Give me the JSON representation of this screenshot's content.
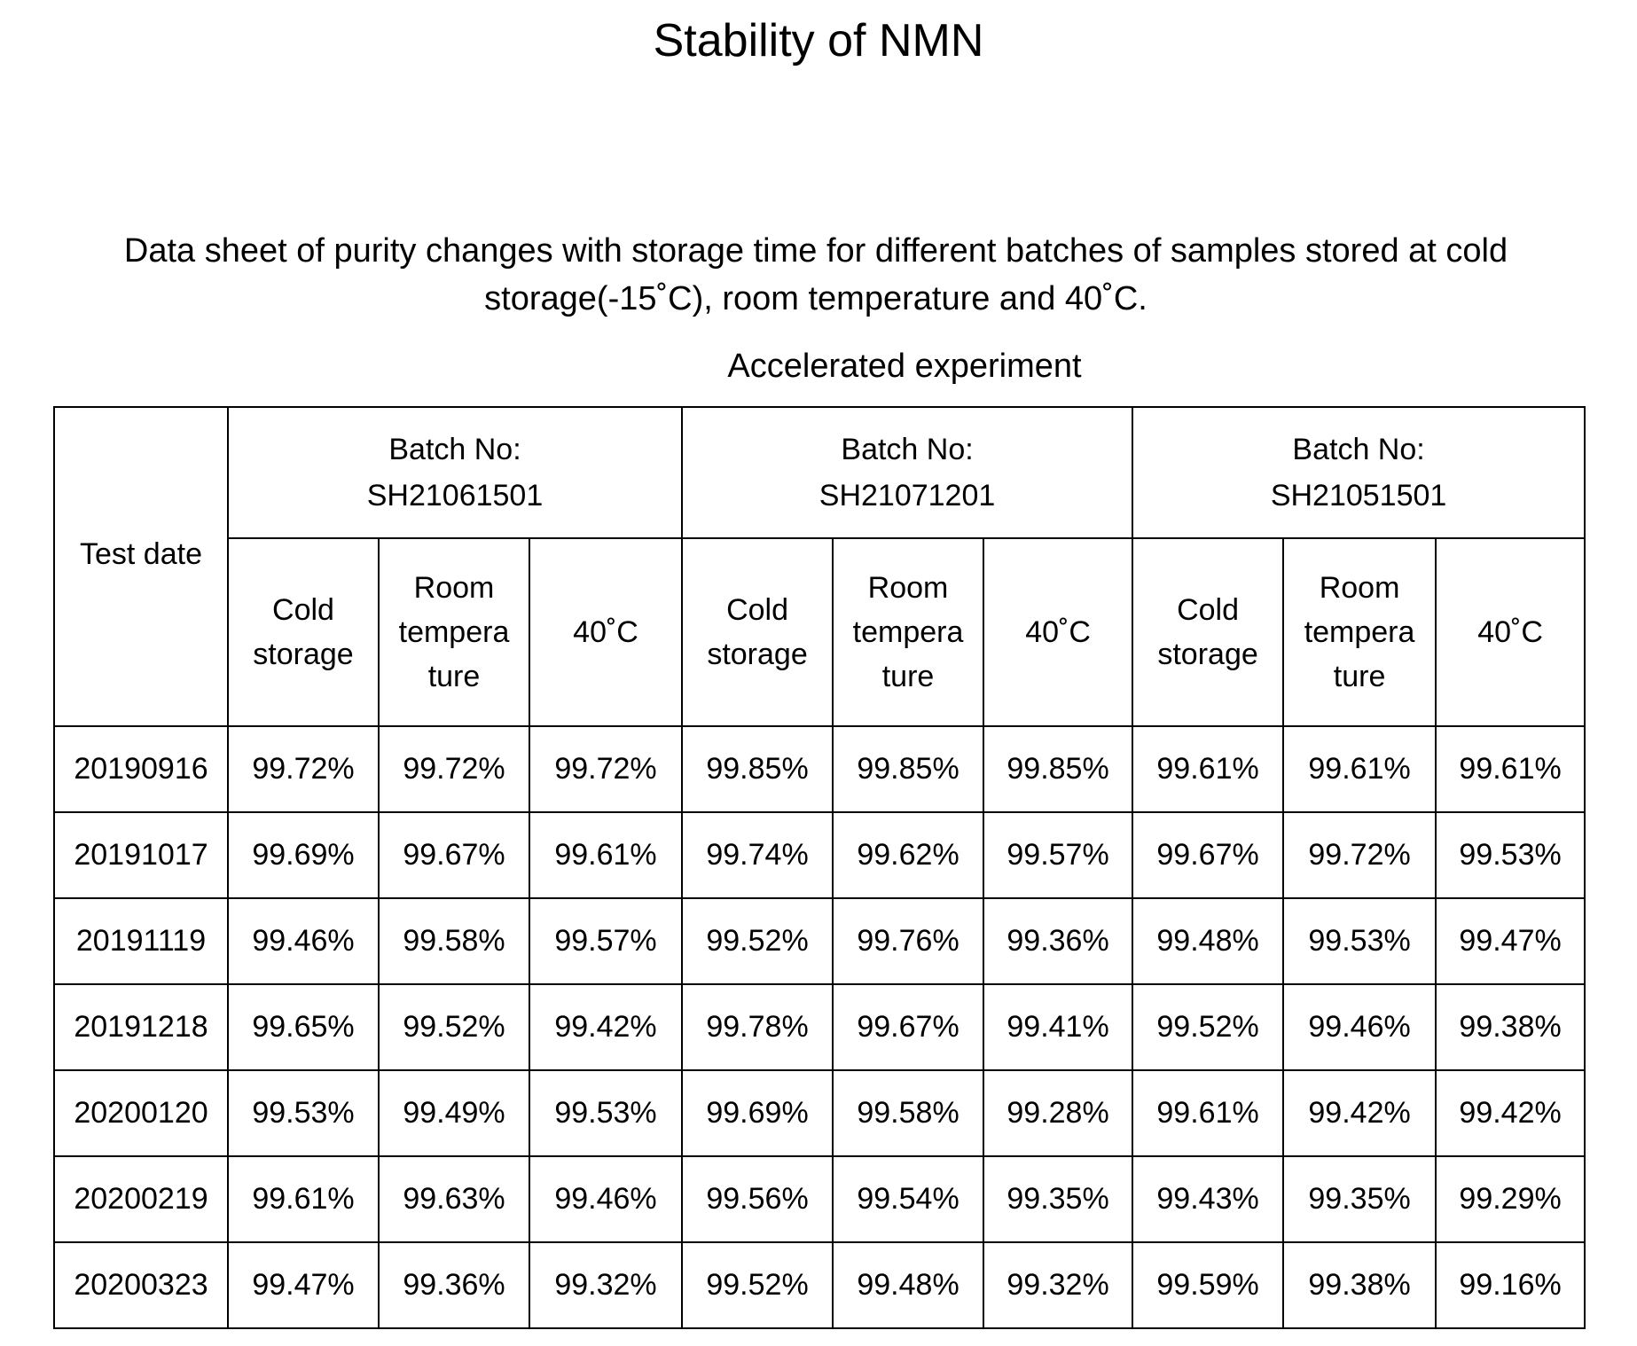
{
  "title": "Stability of NMN",
  "subtitle_line1": "Data sheet of purity changes with storage time for different batches of samples stored at cold",
  "subtitle_line2": "storage(-15˚C), room temperature and 40˚C.",
  "section": "Accelerated experiment",
  "table": {
    "test_date_header": "Test date",
    "batch_label": "Batch No:",
    "batches": [
      "SH21061501",
      "SH21071201",
      "SH21051501"
    ],
    "sub_headers": {
      "cold": [
        "Cold",
        "storage"
      ],
      "room": [
        "Room",
        "tempera",
        "ture"
      ],
      "hot": "40˚C"
    },
    "rows": [
      {
        "date": "20190916",
        "values": [
          "99.72%",
          "99.72%",
          "99.72%",
          "99.85%",
          "99.85%",
          "99.85%",
          "99.61%",
          "99.61%",
          "99.61%"
        ]
      },
      {
        "date": "20191017",
        "values": [
          "99.69%",
          "99.67%",
          "99.61%",
          "99.74%",
          "99.62%",
          "99.57%",
          "99.67%",
          "99.72%",
          "99.53%"
        ]
      },
      {
        "date": "20191119",
        "values": [
          "99.46%",
          "99.58%",
          "99.57%",
          "99.52%",
          "99.76%",
          "99.36%",
          "99.48%",
          "99.53%",
          "99.47%"
        ]
      },
      {
        "date": "20191218",
        "values": [
          "99.65%",
          "99.52%",
          "99.42%",
          "99.78%",
          "99.67%",
          "99.41%",
          "99.52%",
          "99.46%",
          "99.38%"
        ]
      },
      {
        "date": "20200120",
        "values": [
          "99.53%",
          "99.49%",
          "99.53%",
          "99.69%",
          "99.58%",
          "99.28%",
          "99.61%",
          "99.42%",
          "99.42%"
        ]
      },
      {
        "date": "20200219",
        "values": [
          "99.61%",
          "99.63%",
          "99.46%",
          "99.56%",
          "99.54%",
          "99.35%",
          "99.43%",
          "99.35%",
          "99.29%"
        ]
      },
      {
        "date": "20200323",
        "values": [
          "99.47%",
          "99.36%",
          "99.32%",
          "99.52%",
          "99.48%",
          "99.32%",
          "99.59%",
          "99.38%",
          "99.16%"
        ]
      }
    ]
  }
}
